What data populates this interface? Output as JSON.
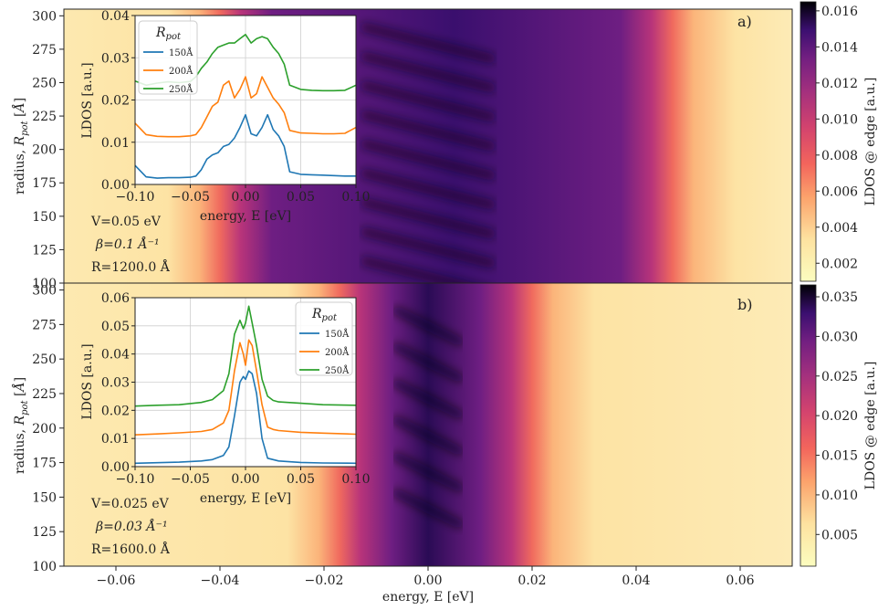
{
  "figure": {
    "xlabel": "energy, E [eV]",
    "ylabel": "radius, R_pot [Å]",
    "x_ticks": [
      "−0.06",
      "−0.04",
      "−0.02",
      "0.00",
      "0.02",
      "0.04",
      "0.06"
    ],
    "y_ticks": [
      "100",
      "125",
      "150",
      "175",
      "200",
      "225",
      "250",
      "275",
      "300"
    ],
    "colorbar_label": "LDOS @ edge [a.u.]"
  },
  "chart_data": [
    {
      "type": "heatmap",
      "panel": "a)",
      "xlabel": "energy, E [eV]",
      "ylabel": "radius, R_pot [Å]",
      "xlim": [
        -0.07,
        0.07
      ],
      "ylim": [
        100,
        305
      ],
      "colormap": "magma_r",
      "colorbar": {
        "label": "LDOS @ edge [a.u.]",
        "range": [
          0.001,
          0.0165
        ],
        "ticks": [
          "0.002",
          "0.004",
          "0.006",
          "0.008",
          "0.010",
          "0.012",
          "0.014",
          "0.016"
        ]
      },
      "band": {
        "lower_edge_eV": -0.038,
        "upper_edge_eV": 0.045,
        "peak_eV": 0.005
      },
      "params": [
        "V=0.05 eV",
        "β=0.1 Å⁻¹",
        "R=1200.0 Å"
      ],
      "inset": {
        "type": "line",
        "xlabel": "energy, E [eV]",
        "ylabel": "LDOS [a.u.]",
        "xlim": [
          -0.1,
          0.1
        ],
        "ylim": [
          0,
          0.04
        ],
        "x_ticks": [
          "−0.10",
          "−0.05",
          "0.00",
          "0.05",
          "0.10"
        ],
        "y_ticks": [
          "0.00",
          "0.01",
          "0.02",
          "0.03",
          "0.04"
        ],
        "legend_title": "R_pot",
        "legend_position": "top-left",
        "series": [
          {
            "name": "150Å",
            "color": "#1f77b4",
            "x": [
              -0.1,
              -0.09,
              -0.08,
              -0.07,
              -0.06,
              -0.05,
              -0.045,
              -0.04,
              -0.035,
              -0.03,
              -0.025,
              -0.02,
              -0.015,
              -0.01,
              -0.005,
              0.0,
              0.005,
              0.01,
              0.015,
              0.02,
              0.025,
              0.03,
              0.035,
              0.04,
              0.05,
              0.06,
              0.07,
              0.08,
              0.09,
              0.1
            ],
            "y": [
              0.0045,
              0.0018,
              0.0015,
              0.0016,
              0.0016,
              0.0017,
              0.002,
              0.0035,
              0.006,
              0.007,
              0.0075,
              0.009,
              0.0095,
              0.011,
              0.0135,
              0.0165,
              0.012,
              0.0115,
              0.0135,
              0.0165,
              0.013,
              0.0115,
              0.009,
              0.003,
              0.0024,
              0.0023,
              0.0022,
              0.0021,
              0.002,
              0.002
            ]
          },
          {
            "name": "200Å",
            "color": "#ff7f0e",
            "x": [
              -0.1,
              -0.09,
              -0.08,
              -0.07,
              -0.06,
              -0.05,
              -0.045,
              -0.04,
              -0.035,
              -0.03,
              -0.025,
              -0.02,
              -0.015,
              -0.01,
              -0.005,
              0.0,
              0.005,
              0.01,
              0.015,
              0.02,
              0.025,
              0.03,
              0.035,
              0.04,
              0.05,
              0.06,
              0.07,
              0.08,
              0.09,
              0.1
            ],
            "y": [
              0.0145,
              0.0118,
              0.0114,
              0.0113,
              0.0113,
              0.0115,
              0.0118,
              0.0135,
              0.016,
              0.0185,
              0.0195,
              0.0235,
              0.0245,
              0.0205,
              0.0225,
              0.0255,
              0.0205,
              0.0215,
              0.0255,
              0.023,
              0.0205,
              0.019,
              0.017,
              0.0128,
              0.0122,
              0.0121,
              0.012,
              0.012,
              0.0121,
              0.0135
            ]
          },
          {
            "name": "250Å",
            "color": "#2ca02c",
            "x": [
              -0.1,
              -0.09,
              -0.08,
              -0.07,
              -0.06,
              -0.05,
              -0.045,
              -0.04,
              -0.035,
              -0.03,
              -0.025,
              -0.02,
              -0.015,
              -0.01,
              -0.005,
              0.0,
              0.005,
              0.01,
              0.015,
              0.02,
              0.025,
              0.03,
              0.035,
              0.04,
              0.05,
              0.06,
              0.07,
              0.08,
              0.09,
              0.1
            ],
            "y": [
              0.0245,
              0.0235,
              0.024,
              0.0243,
              0.0241,
              0.0244,
              0.0255,
              0.0275,
              0.029,
              0.031,
              0.0325,
              0.033,
              0.0335,
              0.0335,
              0.0345,
              0.0355,
              0.0335,
              0.0345,
              0.035,
              0.0345,
              0.0325,
              0.031,
              0.0285,
              0.0235,
              0.0225,
              0.0223,
              0.0222,
              0.0222,
              0.0223,
              0.0235
            ]
          }
        ]
      }
    },
    {
      "type": "heatmap",
      "panel": "b)",
      "xlabel": "energy, E [eV]",
      "ylabel": "radius, R_pot [Å]",
      "xlim": [
        -0.07,
        0.07
      ],
      "ylim": [
        100,
        305
      ],
      "colormap": "magma_r",
      "colorbar": {
        "label": "LDOS @ edge [a.u.]",
        "range": [
          0.001,
          0.0365
        ],
        "ticks": [
          "0.005",
          "0.010",
          "0.015",
          "0.020",
          "0.025",
          "0.030",
          "0.035"
        ]
      },
      "band": {
        "lower_edge_eV": -0.015,
        "upper_edge_eV": 0.018,
        "peak_eV": 0.0
      },
      "params": [
        "V=0.025 eV",
        "β=0.03 Å⁻¹",
        "R=1600.0 Å"
      ],
      "inset": {
        "type": "line",
        "xlabel": "energy, E [eV]",
        "ylabel": "LDOS [a.u.]",
        "xlim": [
          -0.1,
          0.1
        ],
        "ylim": [
          0,
          0.06
        ],
        "x_ticks": [
          "−0.10",
          "−0.05",
          "0.00",
          "0.05",
          "0.10"
        ],
        "y_ticks": [
          "0.00",
          "0.01",
          "0.02",
          "0.03",
          "0.04",
          "0.05",
          "0.06"
        ],
        "legend_title": "R_pot",
        "legend_position": "top-right",
        "series": [
          {
            "name": "150Å",
            "color": "#1f77b4",
            "x": [
              -0.1,
              -0.08,
              -0.06,
              -0.04,
              -0.03,
              -0.02,
              -0.015,
              -0.01,
              -0.005,
              -0.002,
              0.0,
              0.003,
              0.006,
              0.01,
              0.015,
              0.02,
              0.025,
              0.03,
              0.05,
              0.07,
              0.1
            ],
            "y": [
              0.0012,
              0.0014,
              0.0016,
              0.002,
              0.0025,
              0.004,
              0.007,
              0.018,
              0.03,
              0.032,
              0.031,
              0.034,
              0.033,
              0.026,
              0.01,
              0.003,
              0.0025,
              0.002,
              0.0015,
              0.0013,
              0.0012
            ]
          },
          {
            "name": "200Å",
            "color": "#ff7f0e",
            "x": [
              -0.1,
              -0.08,
              -0.06,
              -0.04,
              -0.03,
              -0.02,
              -0.015,
              -0.01,
              -0.005,
              -0.002,
              0.0,
              0.003,
              0.006,
              0.01,
              0.015,
              0.02,
              0.025,
              0.03,
              0.05,
              0.07,
              0.1
            ],
            "y": [
              0.0113,
              0.0116,
              0.012,
              0.0125,
              0.0132,
              0.0155,
              0.02,
              0.034,
              0.044,
              0.04,
              0.036,
              0.045,
              0.043,
              0.034,
              0.022,
              0.014,
              0.0132,
              0.0128,
              0.0122,
              0.0119,
              0.0115
            ]
          },
          {
            "name": "250Å",
            "color": "#2ca02c",
            "x": [
              -0.1,
              -0.08,
              -0.06,
              -0.04,
              -0.03,
              -0.02,
              -0.015,
              -0.01,
              -0.005,
              -0.002,
              0.0,
              0.003,
              0.006,
              0.01,
              0.015,
              0.02,
              0.025,
              0.03,
              0.05,
              0.07,
              0.1
            ],
            "y": [
              0.0215,
              0.0218,
              0.022,
              0.0228,
              0.0238,
              0.027,
              0.033,
              0.047,
              0.052,
              0.049,
              0.051,
              0.057,
              0.051,
              0.043,
              0.031,
              0.025,
              0.0235,
              0.023,
              0.0225,
              0.022,
              0.0218
            ]
          }
        ]
      }
    }
  ]
}
